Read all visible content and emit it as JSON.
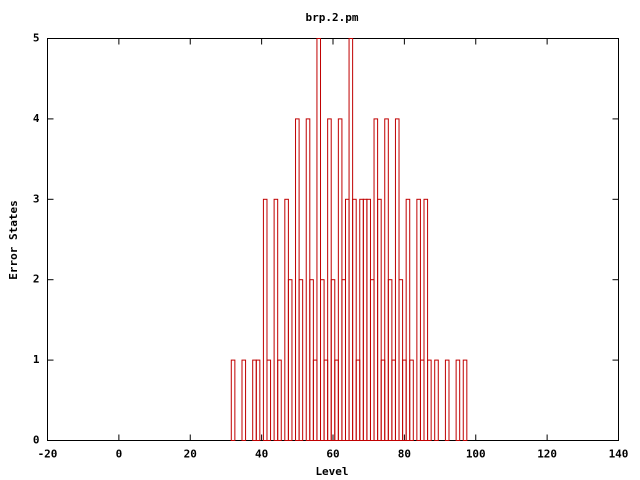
{
  "chart_data": {
    "type": "bar",
    "title": "brp.2.pm",
    "x_label": "Level",
    "y_label": "Error States",
    "x": [
      31,
      32,
      33,
      34,
      35,
      36,
      37,
      38,
      39,
      40,
      41,
      42,
      43,
      44,
      45,
      46,
      47,
      48,
      49,
      50,
      51,
      52,
      53,
      54,
      55,
      56,
      57,
      58,
      59,
      60,
      61,
      62,
      63,
      64,
      65,
      66,
      67,
      68,
      69,
      70,
      71,
      72,
      73,
      74,
      75,
      76,
      77,
      78,
      79,
      80,
      81,
      82,
      83,
      84,
      85,
      86,
      87,
      88,
      89,
      90,
      91,
      92,
      93,
      94,
      95,
      96,
      97
    ],
    "values": [
      0,
      1,
      0,
      0,
      1,
      0,
      0,
      1,
      1,
      0,
      3,
      1,
      0,
      3,
      1,
      0,
      3,
      2,
      0,
      4,
      2,
      0,
      4,
      2,
      1,
      5,
      2,
      1,
      4,
      2,
      1,
      4,
      2,
      3,
      5,
      3,
      1,
      3,
      3,
      3,
      2,
      4,
      3,
      1,
      4,
      2,
      1,
      4,
      2,
      1,
      3,
      1,
      0,
      3,
      1,
      3,
      1,
      0,
      1,
      0,
      0,
      1,
      0,
      0,
      1,
      0,
      1
    ],
    "color": "#c00000",
    "xlim": [
      -20,
      140
    ],
    "xticks": [
      -20,
      0,
      20,
      40,
      60,
      80,
      100,
      120,
      140
    ],
    "ylim": [
      0,
      5
    ],
    "yticks": [
      0,
      1,
      2,
      3,
      4,
      5
    ]
  }
}
